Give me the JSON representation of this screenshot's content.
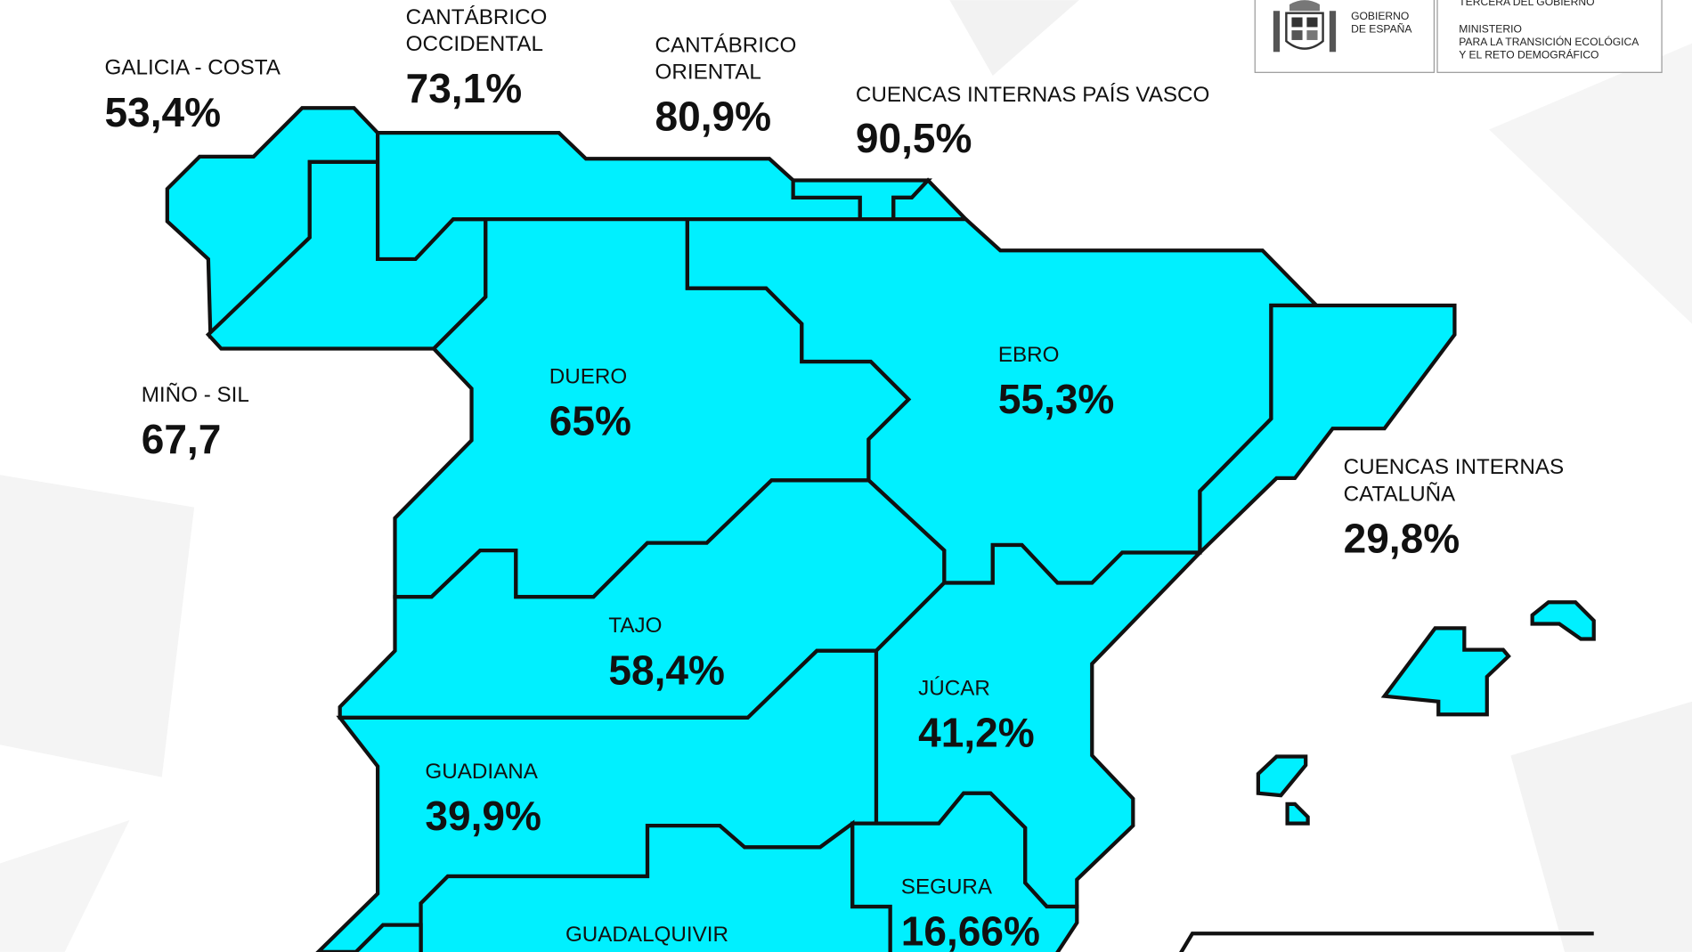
{
  "header": {
    "logo_text": [
      "GOBIERNO",
      "DE ESPAÑA"
    ],
    "ministry_lines": [
      "TERCERA DEL GOBIERNO",
      "MINISTERIO",
      "PARA LA TRANSICIÓN ECOLÓGICA",
      "Y EL RETO DEMOGRÁFICO"
    ]
  },
  "colors": {
    "region_fill": "#00f0ff",
    "border": "#111111",
    "background": "#ffffff"
  },
  "basins": [
    {
      "name_lines": [
        "GALICIA - COSTA"
      ],
      "value": "53,4%"
    },
    {
      "name_lines": [
        "CANTÁBRICO",
        "OCCIDENTAL"
      ],
      "value": "73,1%"
    },
    {
      "name_lines": [
        "CANTÁBRICO",
        "ORIENTAL"
      ],
      "value": "80,9%"
    },
    {
      "name_lines": [
        "CUENCAS INTERNAS PAÍS VASCO"
      ],
      "value": "90,5%"
    },
    {
      "name_lines": [
        "MIÑO - SIL"
      ],
      "value": "67,7"
    },
    {
      "name_lines": [
        "DUERO"
      ],
      "value": "65%"
    },
    {
      "name_lines": [
        "EBRO"
      ],
      "value": "55,3%"
    },
    {
      "name_lines": [
        "CUENCAS INTERNAS",
        "CATALUÑA"
      ],
      "value": "29,8%"
    },
    {
      "name_lines": [
        "TAJO"
      ],
      "value": "58,4%"
    },
    {
      "name_lines": [
        "JÚCAR"
      ],
      "value": "41,2%"
    },
    {
      "name_lines": [
        "GUADIANA"
      ],
      "value": "39,9%"
    },
    {
      "name_lines": [
        "SEGURA"
      ],
      "value": "16,66%"
    },
    {
      "name_lines": [
        "GUADALQUIVIR"
      ],
      "value": ""
    }
  ]
}
